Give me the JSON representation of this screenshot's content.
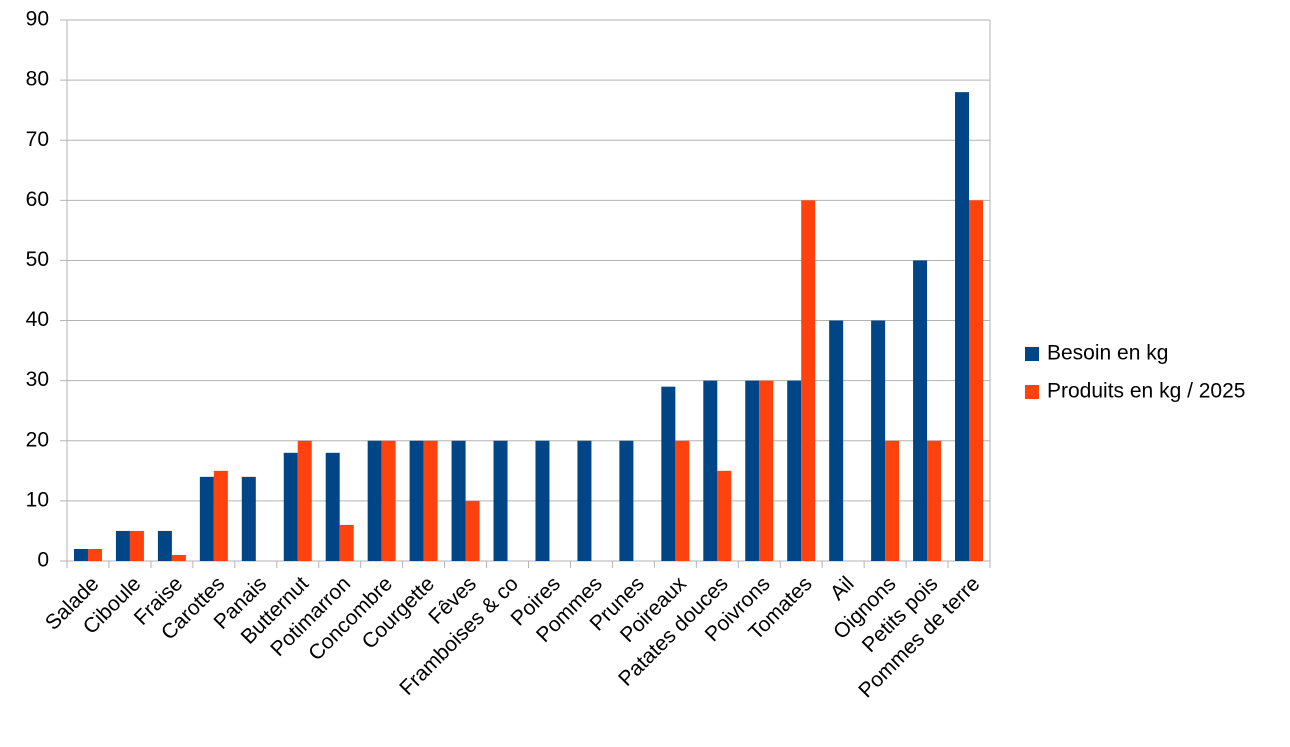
{
  "chart_data": {
    "type": "bar",
    "categories": [
      "Salade",
      "Ciboule",
      "Fraise",
      "Carottes",
      "Panais",
      "Butternut",
      "Potimarron",
      "Concombre",
      "Courgette",
      "Fêves",
      "Framboises & co",
      "Poires",
      "Pommes",
      "Prunes",
      "Poireaux",
      "Patates douces",
      "Poivrons",
      "Tomates",
      "Ail",
      "Oignons",
      "Petits pois",
      "Pommes de terre"
    ],
    "series": [
      {
        "name": "Besoin en kg",
        "color": "#004586",
        "values": [
          2,
          5,
          5,
          14,
          14,
          18,
          18,
          20,
          20,
          20,
          20,
          20,
          20,
          20,
          29,
          30,
          30,
          30,
          40,
          40,
          50,
          78
        ]
      },
      {
        "name": "Produits en kg / 2025",
        "color": "#ff420e",
        "values": [
          2,
          5,
          1,
          15,
          null,
          20,
          6,
          20,
          20,
          10,
          null,
          null,
          null,
          null,
          20,
          15,
          30,
          60,
          null,
          20,
          20,
          60
        ]
      }
    ],
    "ylim": [
      0,
      90
    ],
    "yticks": [
      0,
      10,
      20,
      30,
      40,
      50,
      60,
      70,
      80,
      90
    ],
    "grid": true,
    "legend": "right"
  }
}
